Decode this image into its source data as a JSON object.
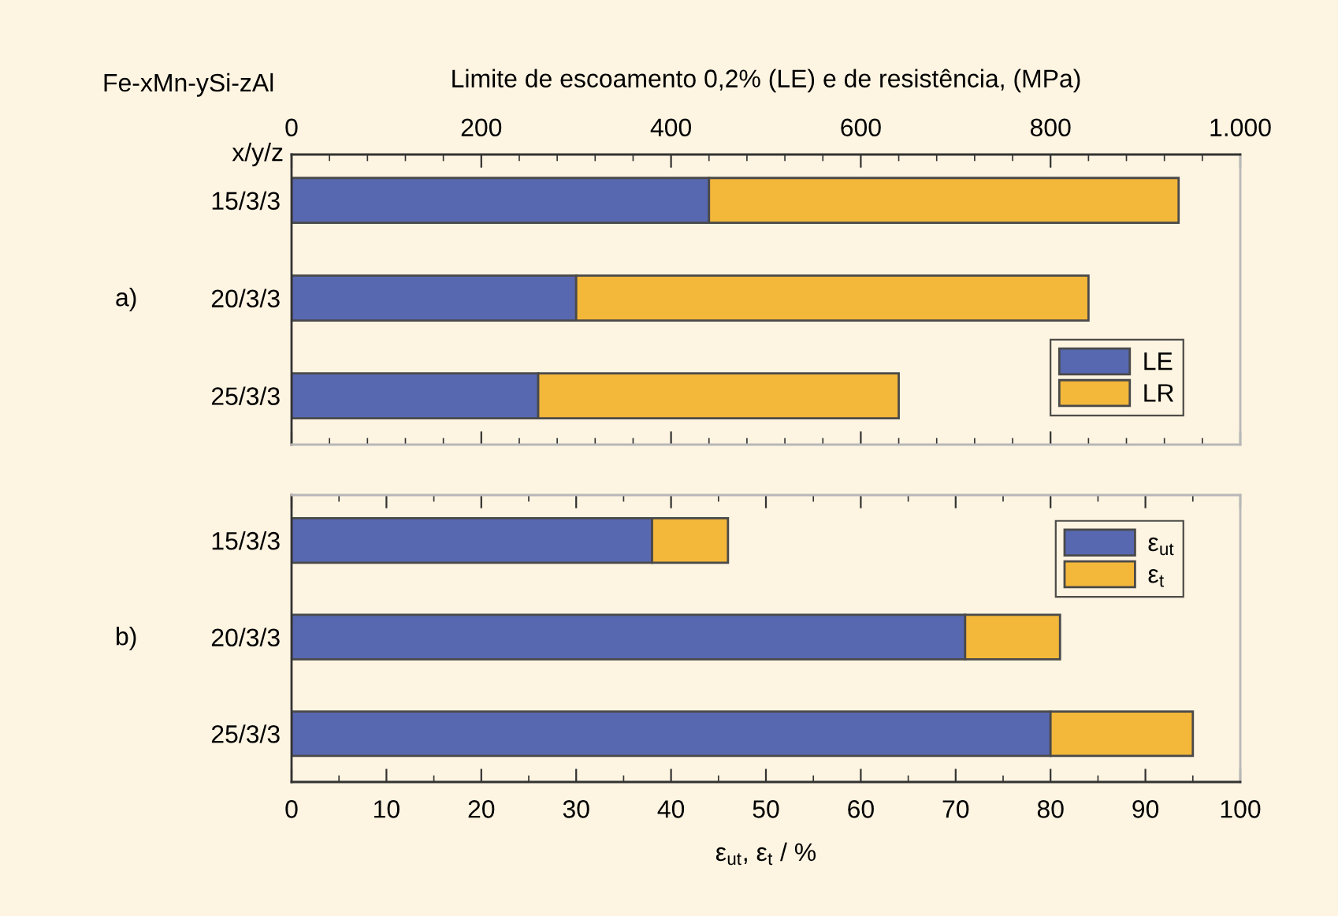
{
  "chart_data": [
    {
      "type": "bar",
      "orientation": "horizontal",
      "stacked": true,
      "title": "Fe-xMn-ySi-zAl",
      "x2label": "Limite de escoamento 0,2% (LE) e de resistência, (MPa)",
      "ylabel": "x/y/z",
      "annotations": [
        "a)"
      ],
      "categories": [
        "15/3/3",
        "20/3/3",
        "25/3/3"
      ],
      "series": [
        {
          "name": "LE",
          "color": "#5868b0",
          "values": [
            440,
            300,
            260
          ],
          "axis": "x2"
        },
        {
          "name": "LR",
          "color": "#f3b73a",
          "values": [
            495,
            540,
            380
          ],
          "axis": "x2"
        }
      ],
      "x2lim": [
        0,
        1000
      ],
      "x2ticks": [
        0,
        {
          "value": 40,
          "label": null
        },
        {
          "value": 80,
          "label": null
        },
        {
          "value": 120,
          "label": null
        },
        {
          "value": 160,
          "label": null
        },
        200,
        {
          "value": 240,
          "label": null
        },
        {
          "value": 280,
          "label": null
        },
        {
          "value": 320,
          "label": null
        },
        {
          "value": 360,
          "label": null
        },
        400,
        {
          "value": 440,
          "label": null
        },
        {
          "value": 480,
          "label": null
        },
        {
          "value": 520,
          "label": null
        },
        {
          "value": 560,
          "label": null
        },
        600,
        {
          "value": 640,
          "label": null
        },
        {
          "value": 680,
          "label": null
        },
        {
          "value": 720,
          "label": null
        },
        {
          "value": 760,
          "label": null
        },
        800,
        {
          "value": 840,
          "label": null
        },
        {
          "value": 880,
          "label": null
        },
        {
          "value": 920,
          "label": null
        },
        {
          "value": 960,
          "label": null
        },
        {
          "value": 1000,
          "label": "1.000"
        }
      ],
      "legend": "bottom right"
    },
    {
      "type": "bar",
      "orientation": "horizontal",
      "stacked": true,
      "xlabel": "ε$_{ut}$, ε$_{t}$ / %",
      "annotations": [
        "b)"
      ],
      "categories": [
        "15/3/3",
        "20/3/3",
        "25/3/3"
      ],
      "series": [
        {
          "name": "ε$_{ut}$",
          "color": "#5868b0",
          "values": [
            38,
            71,
            80
          ]
        },
        {
          "name": "ε$_{t}$",
          "color": "#f3b73a",
          "values": [
            8,
            10,
            15
          ]
        }
      ],
      "xlim": [
        0,
        100
      ],
      "xticks": [
        0,
        {
          "value": 5,
          "label": null
        },
        10,
        {
          "value": 15,
          "label": null
        },
        20,
        {
          "value": 25,
          "label": null
        },
        30,
        {
          "value": 35,
          "label": null
        },
        40,
        {
          "value": 45,
          "label": null
        },
        50,
        {
          "value": 55,
          "label": null
        },
        60,
        {
          "value": 65,
          "label": null
        },
        70,
        {
          "value": 75,
          "label": null
        },
        80,
        {
          "value": 85,
          "label": null
        },
        90,
        {
          "value": 95,
          "label": null
        },
        100
      ],
      "legend": "top right"
    }
  ]
}
